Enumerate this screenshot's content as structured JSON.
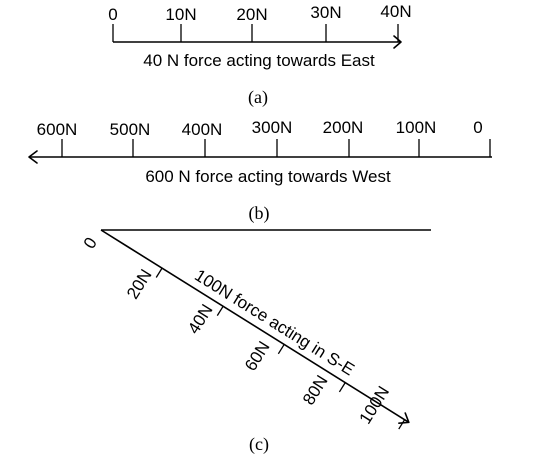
{
  "panel_a": {
    "ticks": [
      "0",
      "10N",
      "20N",
      "30N",
      "40N"
    ],
    "caption": "40 N force acting towards East",
    "letter": "(a)"
  },
  "panel_b": {
    "ticks": [
      "600N",
      "500N",
      "400N",
      "300N",
      "200N",
      "100N",
      "0"
    ],
    "caption": "600 N force acting towards West",
    "letter": "(b)"
  },
  "panel_c": {
    "ticks": [
      "0",
      "20N",
      "40N",
      "60N",
      "80N",
      "100N"
    ],
    "caption": "100N force acting in S-E",
    "letter": "(c)"
  }
}
